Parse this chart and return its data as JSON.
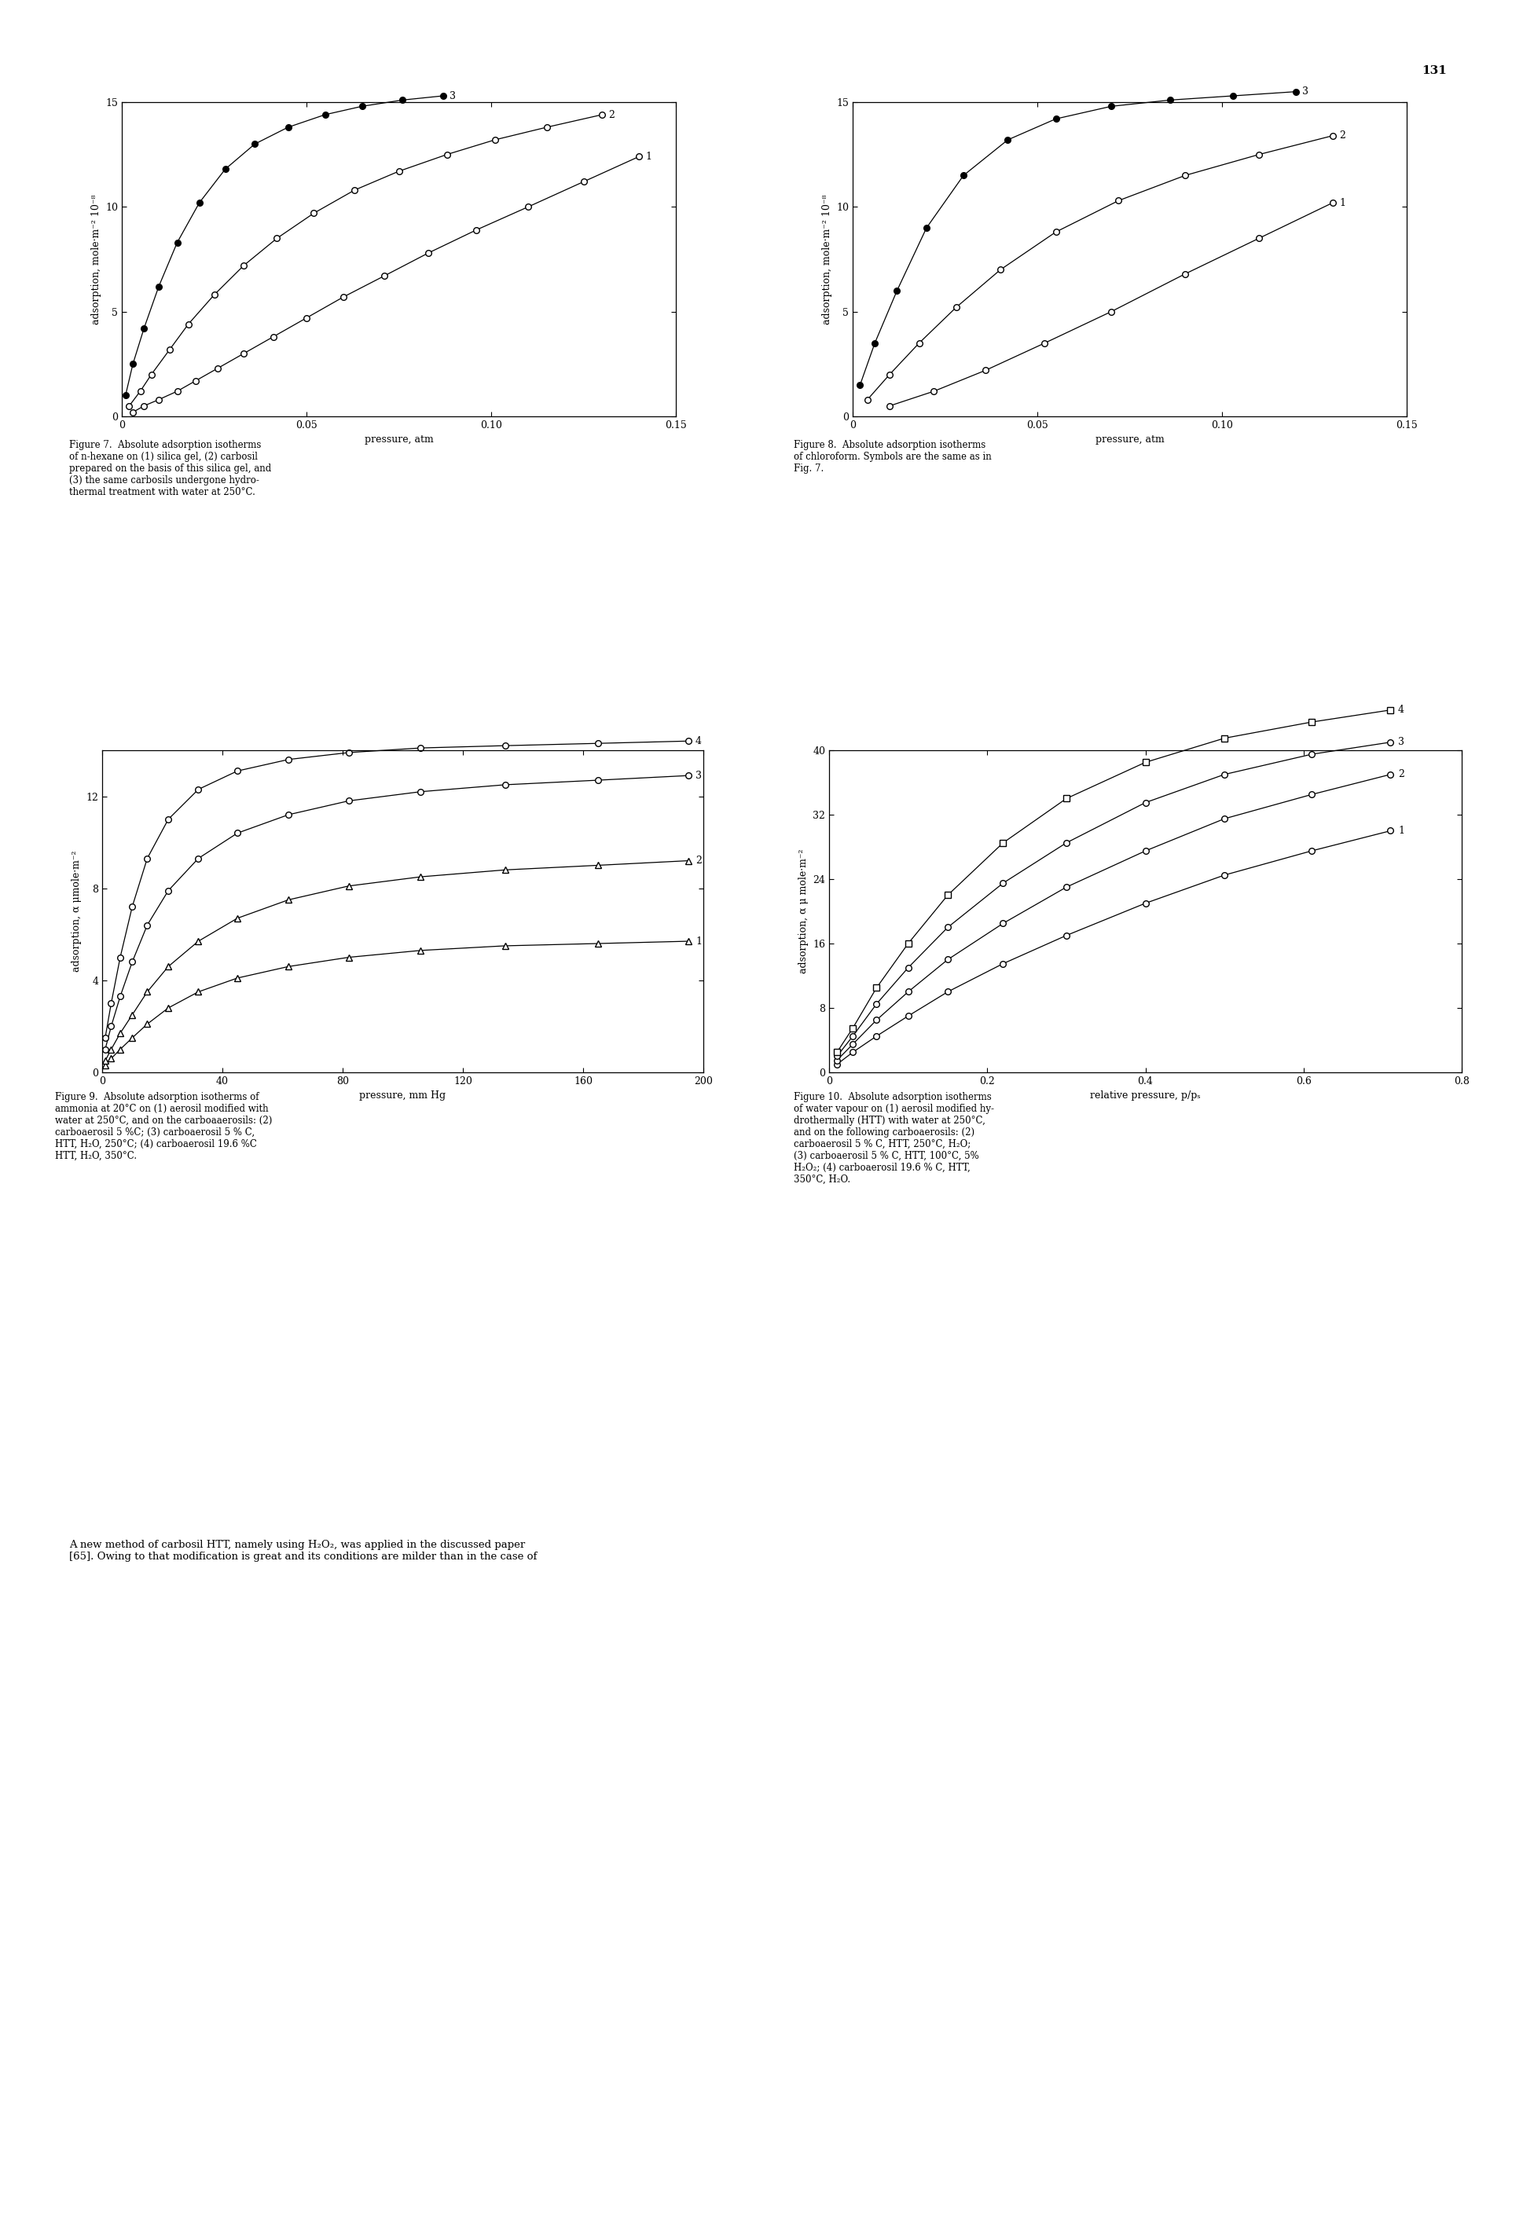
{
  "page_number": "131",
  "fig_width": 19.52,
  "fig_height": 28.5,
  "fig7": {
    "xlabel": "pressure, atm",
    "ylabel": "adsorption, mole·m⁻² 10⁻⁸",
    "xlim": [
      0,
      0.15
    ],
    "ylim": [
      0,
      15
    ],
    "xticks": [
      0,
      0.05,
      0.1,
      0.15
    ],
    "xticklabels": [
      "0",
      "0.05",
      "0.10",
      "0.15"
    ],
    "yticks": [
      0,
      5,
      10,
      15
    ],
    "series": [
      {
        "label": "1",
        "marker": "o",
        "filled": false,
        "x": [
          0.003,
          0.006,
          0.01,
          0.015,
          0.02,
          0.026,
          0.033,
          0.041,
          0.05,
          0.06,
          0.071,
          0.083,
          0.096,
          0.11,
          0.125,
          0.14
        ],
        "y": [
          0.2,
          0.5,
          0.8,
          1.2,
          1.7,
          2.3,
          3.0,
          3.8,
          4.7,
          5.7,
          6.7,
          7.8,
          8.9,
          10.0,
          11.2,
          12.4
        ]
      },
      {
        "label": "2",
        "marker": "o",
        "filled": false,
        "x": [
          0.002,
          0.005,
          0.008,
          0.013,
          0.018,
          0.025,
          0.033,
          0.042,
          0.052,
          0.063,
          0.075,
          0.088,
          0.101,
          0.115,
          0.13
        ],
        "y": [
          0.5,
          1.2,
          2.0,
          3.2,
          4.4,
          5.8,
          7.2,
          8.5,
          9.7,
          10.8,
          11.7,
          12.5,
          13.2,
          13.8,
          14.4
        ]
      },
      {
        "label": "3",
        "marker": "o",
        "filled": true,
        "x": [
          0.001,
          0.003,
          0.006,
          0.01,
          0.015,
          0.021,
          0.028,
          0.036,
          0.045,
          0.055,
          0.065,
          0.076,
          0.087
        ],
        "y": [
          1.0,
          2.5,
          4.2,
          6.2,
          8.3,
          10.2,
          11.8,
          13.0,
          13.8,
          14.4,
          14.8,
          15.1,
          15.3
        ]
      }
    ],
    "caption": "Figure 7.  Absolute adsorption isotherms\nof n-hexane on (1) silica gel, (2) carbosil\nprepared on the basis of this silica gel, and\n(3) the same carbosils undergone hydro-\nthermal treatment with water at 250°C."
  },
  "fig8": {
    "xlabel": "pressure, atm",
    "ylabel": "adsorption, mole·m⁻² 10⁻⁸",
    "xlim": [
      0,
      0.15
    ],
    "ylim": [
      0,
      15
    ],
    "xticks": [
      0,
      0.05,
      0.1,
      0.15
    ],
    "xticklabels": [
      "0",
      "0.05",
      "0.10",
      "0.15"
    ],
    "yticks": [
      0,
      5,
      10,
      15
    ],
    "series": [
      {
        "label": "1",
        "marker": "o",
        "filled": false,
        "x": [
          0.01,
          0.022,
          0.036,
          0.052,
          0.07,
          0.09,
          0.11,
          0.13
        ],
        "y": [
          0.5,
          1.2,
          2.2,
          3.5,
          5.0,
          6.8,
          8.5,
          10.2
        ]
      },
      {
        "label": "2",
        "marker": "o",
        "filled": false,
        "x": [
          0.004,
          0.01,
          0.018,
          0.028,
          0.04,
          0.055,
          0.072,
          0.09,
          0.11,
          0.13
        ],
        "y": [
          0.8,
          2.0,
          3.5,
          5.2,
          7.0,
          8.8,
          10.3,
          11.5,
          12.5,
          13.4
        ]
      },
      {
        "label": "3",
        "marker": "o",
        "filled": true,
        "x": [
          0.002,
          0.006,
          0.012,
          0.02,
          0.03,
          0.042,
          0.055,
          0.07,
          0.086,
          0.103,
          0.12
        ],
        "y": [
          1.5,
          3.5,
          6.0,
          9.0,
          11.5,
          13.2,
          14.2,
          14.8,
          15.1,
          15.3,
          15.5
        ]
      }
    ],
    "caption": "Figure 8.  Absolute adsorption isotherms\nof chloroform. Symbols are the same as in\nFig. 7."
  },
  "fig9": {
    "xlabel": "pressure, mm Hg",
    "ylabel": "adsorption, α μmole·m⁻²",
    "xlim": [
      0,
      200
    ],
    "ylim": [
      0,
      14
    ],
    "xticks": [
      0,
      40,
      80,
      120,
      160,
      200
    ],
    "xticklabels": [
      "0",
      "40",
      "80",
      "120",
      "160",
      "200"
    ],
    "yticks": [
      0,
      4,
      8,
      12
    ],
    "series": [
      {
        "label": "1",
        "marker": "^",
        "filled": false,
        "x": [
          1,
          3,
          6,
          10,
          15,
          22,
          32,
          45,
          62,
          82,
          106,
          134,
          165,
          195
        ],
        "y": [
          0.3,
          0.6,
          1.0,
          1.5,
          2.1,
          2.8,
          3.5,
          4.1,
          4.6,
          5.0,
          5.3,
          5.5,
          5.6,
          5.7
        ]
      },
      {
        "label": "2",
        "marker": "^",
        "filled": false,
        "x": [
          1,
          3,
          6,
          10,
          15,
          22,
          32,
          45,
          62,
          82,
          106,
          134,
          165,
          195
        ],
        "y": [
          0.5,
          1.0,
          1.7,
          2.5,
          3.5,
          4.6,
          5.7,
          6.7,
          7.5,
          8.1,
          8.5,
          8.8,
          9.0,
          9.2
        ]
      },
      {
        "label": "3",
        "marker": "o",
        "filled": false,
        "x": [
          1,
          3,
          6,
          10,
          15,
          22,
          32,
          45,
          62,
          82,
          106,
          134,
          165,
          195
        ],
        "y": [
          1.0,
          2.0,
          3.3,
          4.8,
          6.4,
          7.9,
          9.3,
          10.4,
          11.2,
          11.8,
          12.2,
          12.5,
          12.7,
          12.9
        ]
      },
      {
        "label": "4",
        "marker": "o",
        "filled": false,
        "x": [
          1,
          3,
          6,
          10,
          15,
          22,
          32,
          45,
          62,
          82,
          106,
          134,
          165,
          195
        ],
        "y": [
          1.5,
          3.0,
          5.0,
          7.2,
          9.3,
          11.0,
          12.3,
          13.1,
          13.6,
          13.9,
          14.1,
          14.2,
          14.3,
          14.4
        ]
      }
    ],
    "caption": "Figure 9.  Absolute adsorption isotherms of\nammonia at 20°C on (1) aerosil modified with\nwater at 250°C, and on the carboaaerosils: (2)\ncarboaerosil 5 %C; (3) carboaerosil 5 % C,\nHTT, H₂O, 250°C; (4) carboaerosil 19.6 %C\nHTT, H₂O, 350°C."
  },
  "fig10": {
    "xlabel": "relative pressure, p/pₛ",
    "ylabel": "adsorption, α μ mole·m⁻²",
    "xlim": [
      0,
      0.8
    ],
    "ylim": [
      0,
      40
    ],
    "xticks": [
      0,
      0.2,
      0.4,
      0.6,
      0.8
    ],
    "xticklabels": [
      "0",
      "0.2",
      "0.4",
      "0.6",
      "0.8"
    ],
    "yticks": [
      0,
      8,
      16,
      24,
      32,
      40
    ],
    "series": [
      {
        "label": "1",
        "marker": "o",
        "filled": false,
        "x": [
          0.01,
          0.03,
          0.06,
          0.1,
          0.15,
          0.22,
          0.3,
          0.4,
          0.5,
          0.61,
          0.71
        ],
        "y": [
          1.0,
          2.5,
          4.5,
          7.0,
          10.0,
          13.5,
          17.0,
          21.0,
          24.5,
          27.5,
          30.0
        ]
      },
      {
        "label": "2",
        "marker": "o",
        "filled": false,
        "x": [
          0.01,
          0.03,
          0.06,
          0.1,
          0.15,
          0.22,
          0.3,
          0.4,
          0.5,
          0.61,
          0.71
        ],
        "y": [
          1.5,
          3.5,
          6.5,
          10.0,
          14.0,
          18.5,
          23.0,
          27.5,
          31.5,
          34.5,
          37.0
        ]
      },
      {
        "label": "3",
        "marker": "o",
        "filled": false,
        "x": [
          0.01,
          0.03,
          0.06,
          0.1,
          0.15,
          0.22,
          0.3,
          0.4,
          0.5,
          0.61,
          0.71
        ],
        "y": [
          2.0,
          4.5,
          8.5,
          13.0,
          18.0,
          23.5,
          28.5,
          33.5,
          37.0,
          39.5,
          41.0
        ]
      },
      {
        "label": "4",
        "marker": "s",
        "filled": false,
        "x": [
          0.01,
          0.03,
          0.06,
          0.1,
          0.15,
          0.22,
          0.3,
          0.4,
          0.5,
          0.61,
          0.71
        ],
        "y": [
          2.5,
          5.5,
          10.5,
          16.0,
          22.0,
          28.5,
          34.0,
          38.5,
          41.5,
          43.5,
          45.0
        ]
      }
    ],
    "caption": "Figure 10.  Absolute adsorption isotherms\nof water vapour on (1) aerosil modified hy-\ndrothermally (HTT) with water at 250°C,\nand on the following carboaerosils: (2)\ncarboaerosil 5 % C, HTT, 250°C, H₂O;\n(3) carboaerosil 5 % C, HTT, 100°C, 5%\nH₂O₂; (4) carboaerosil 19.6 % C, HTT,\n350°C, H₂O."
  },
  "bottom_text": "A new method of carbosil HTT, namely using H₂O₂, was applied in the discussed paper\n[65]. Owing to that modification is great and its conditions are milder than in the case of"
}
